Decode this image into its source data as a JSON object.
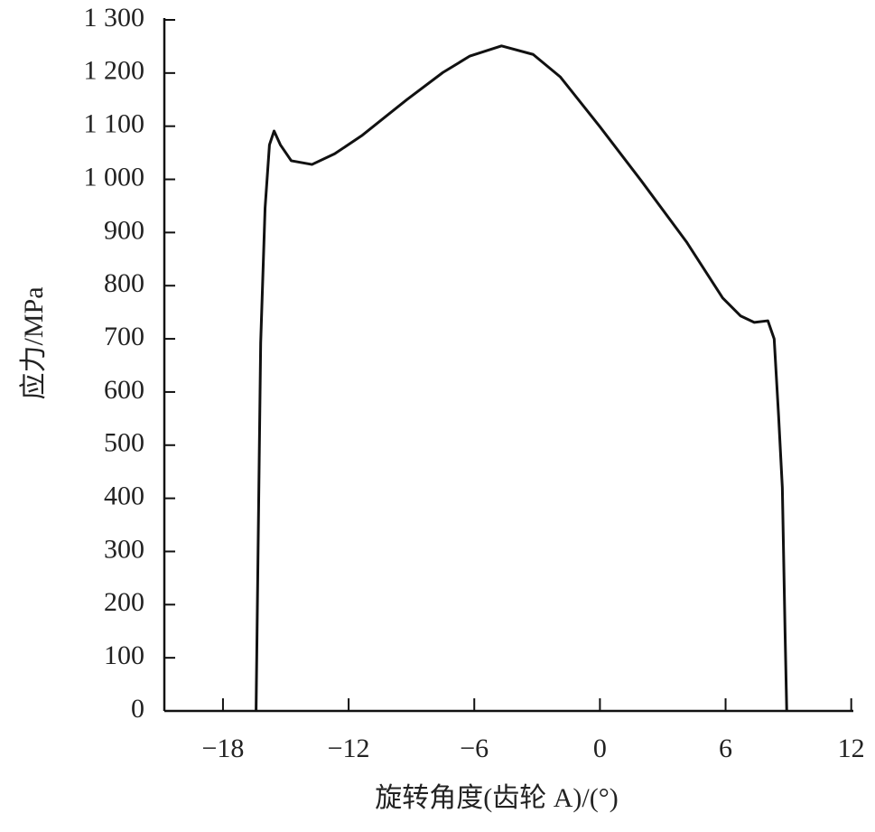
{
  "chart_data": {
    "type": "line",
    "x_label": "旋转角度(齿轮 A)/(°)",
    "y_label": "应力/MPa",
    "xlim": [
      -20.8,
      12.1
    ],
    "ylim": [
      0,
      1300
    ],
    "xticks": [
      {
        "value": -18,
        "label": "−18"
      },
      {
        "value": -12,
        "label": "−12"
      },
      {
        "value": -6,
        "label": "−6"
      },
      0,
      6,
      12
    ],
    "yticks": [
      0,
      100,
      200,
      300,
      400,
      500,
      600,
      700,
      800,
      900,
      {
        "value": 1000,
        "label": "1 000"
      },
      {
        "value": 1100,
        "label": "1 100"
      },
      {
        "value": 1200,
        "label": "1 200"
      },
      {
        "value": 1300,
        "label": "1 300"
      }
    ],
    "color": "#111111",
    "x": [
      -16.42,
      -16.2,
      -15.99,
      -15.78,
      -15.56,
      -15.26,
      -14.74,
      -13.75,
      -12.67,
      -11.38,
      -9.22,
      -7.5,
      -6.21,
      -4.7,
      -3.19,
      -1.9,
      0,
      1.98,
      4.14,
      5.86,
      6.72,
      7.37,
      8.02,
      8.32,
      8.53,
      8.71,
      8.84,
      8.92
    ],
    "values": [
      0,
      692,
      946,
      1065,
      1091,
      1065,
      1035,
      1028,
      1048,
      1082,
      1150,
      1201,
      1232,
      1251,
      1235,
      1193,
      1099,
      997,
      882,
      777,
      743,
      731,
      734,
      700,
      556,
      420,
      148,
      0
    ]
  }
}
